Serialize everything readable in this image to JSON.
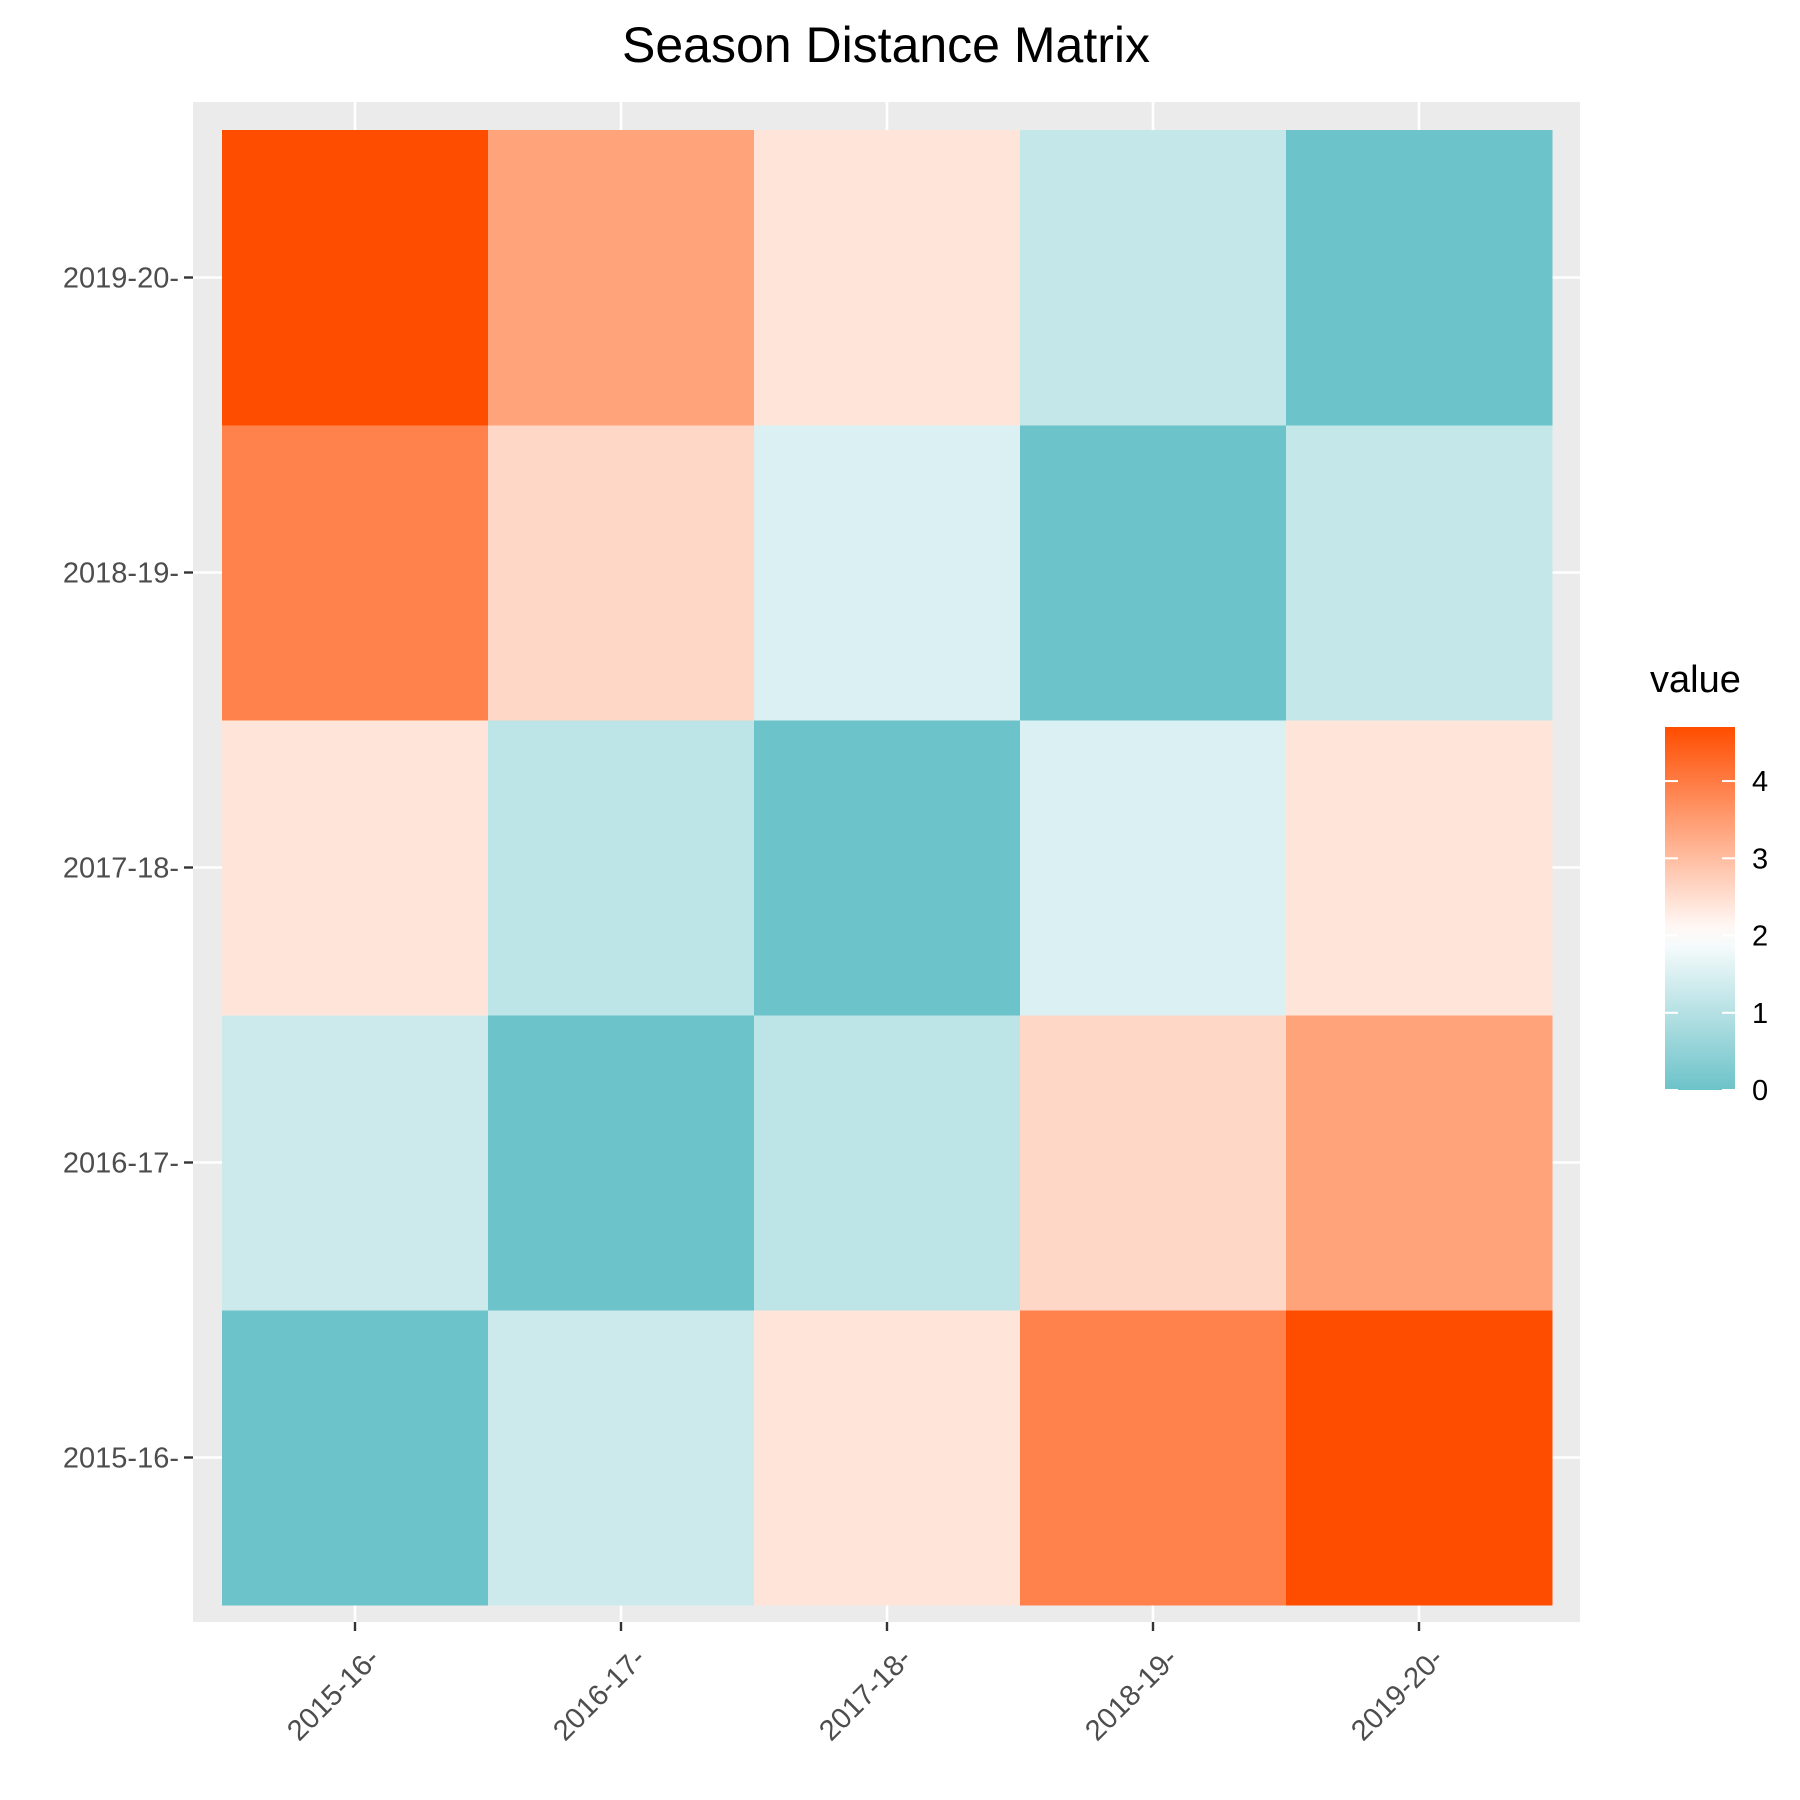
{
  "chart_data": {
    "type": "heatmap",
    "title": "Season Distance Matrix",
    "xlabel": "",
    "ylabel": "",
    "x_categories": [
      "2015-16-",
      "2016-17-",
      "2017-18-",
      "2018-19-",
      "2019-20-"
    ],
    "y_categories": [
      "2015-16-",
      "2016-17-",
      "2017-18-",
      "2018-19-",
      "2019-20-"
    ],
    "values": [
      [
        0.0,
        1.3,
        2.4,
        3.9,
        4.7
      ],
      [
        1.3,
        0.0,
        1.1,
        2.6,
        3.4
      ],
      [
        2.4,
        1.1,
        0.0,
        1.5,
        2.4
      ],
      [
        3.9,
        2.6,
        1.5,
        0.0,
        1.2
      ],
      [
        4.7,
        3.4,
        2.4,
        1.2,
        0.0
      ]
    ],
    "legend": {
      "title": "value",
      "position": "right",
      "ticks": [
        0,
        1,
        2,
        3,
        4
      ],
      "range": [
        0,
        4.7
      ]
    },
    "colors": {
      "low": "#6cc3c9",
      "mid": "#ffffff",
      "high": "#ff4d00",
      "midpoint": 2,
      "panel_background": "#ebebeb",
      "grid": "#ffffff"
    },
    "grid": true
  }
}
